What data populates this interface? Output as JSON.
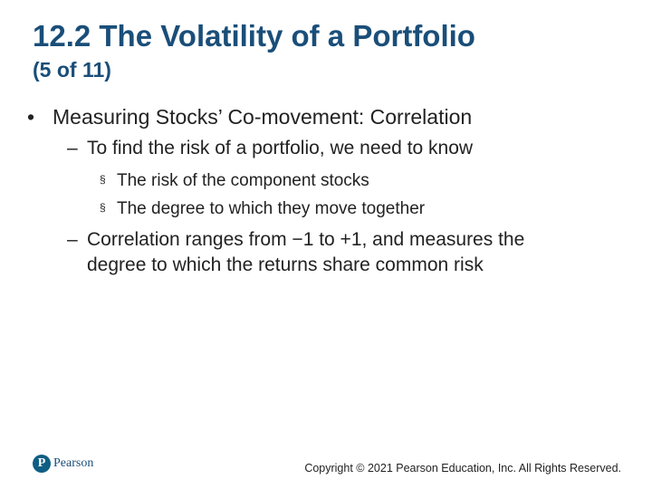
{
  "slide": {
    "title": "12.2 The Volatility of a Portfolio",
    "subtitle": "(5 of 11)",
    "bullets": [
      {
        "text": "Measuring Stocks’ Co-movement: Correlation",
        "bullet": "•",
        "sub": [
          {
            "bullet": "–",
            "text": "To find the risk of a portfolio, we need to know",
            "sub": [
              {
                "bullet": "§",
                "text": "The risk of the component stocks"
              },
              {
                "bullet": "§",
                "text": "The degree to which they move together"
              }
            ]
          },
          {
            "bullet": "–",
            "text_line1": "Correlation ranges from −1 to +1, and measures the",
            "text_line2": "degree to which the returns share common risk"
          }
        ]
      }
    ]
  },
  "footer": {
    "logo_letter": "P",
    "logo_text": "Pearson",
    "copyright": "Copyright © 2021 Pearson Education, Inc. All Rights Reserved."
  },
  "colors": {
    "title": "#1a4e79",
    "text": "#222222",
    "logo": "#0f5e84"
  }
}
